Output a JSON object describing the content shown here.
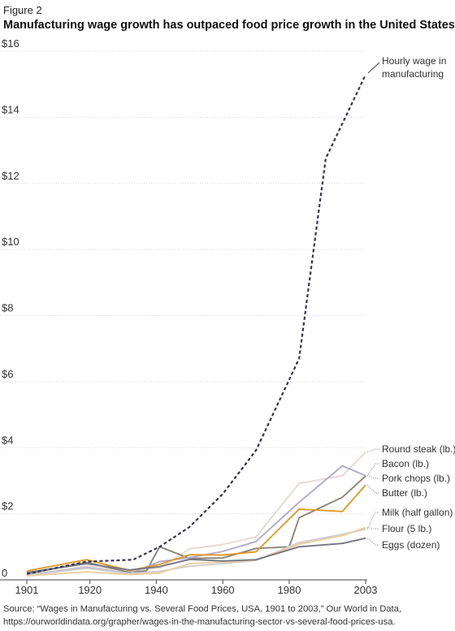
{
  "figure_label": "Figure 2",
  "source": {
    "line1": "Source: “Wages in Manufacturing vs. Several Food Prices, USA, 1901 to 2003,” Our World in Data,",
    "line2": "https://ourworldindata.org/grapher/wages-in-the-manufacturing-sector-vs-several-food-prices-usa."
  },
  "chart_data": {
    "type": "line",
    "title": "Manufacturing wage growth has outpaced food price growth in the United States",
    "xlabel": "",
    "ylabel": "",
    "xlim": [
      1901,
      2003
    ],
    "ylim": [
      0,
      16
    ],
    "x_ticks": [
      {
        "value": 1901,
        "label": "1901"
      },
      {
        "value": 1920,
        "label": "1920"
      },
      {
        "value": 1940,
        "label": "1940"
      },
      {
        "value": 1960,
        "label": "1960"
      },
      {
        "value": 1980,
        "label": "1980"
      },
      {
        "value": 2003,
        "label": "2003"
      }
    ],
    "y_ticks": [
      {
        "value": 0,
        "label": "0"
      },
      {
        "value": 2,
        "label": "$2"
      },
      {
        "value": 4,
        "label": "$4"
      },
      {
        "value": 6,
        "label": "$6"
      },
      {
        "value": 8,
        "label": "$8"
      },
      {
        "value": 10,
        "label": "$10"
      },
      {
        "value": 12,
        "label": "$12"
      },
      {
        "value": 14,
        "label": "$14"
      },
      {
        "value": 16,
        "label": "$16"
      }
    ],
    "grid": {
      "horizontal": true,
      "vertical": false
    },
    "legend": "direct labels at right end of lines",
    "series": [
      {
        "name": "Round steak (lb.)",
        "color": "#e6d9d3",
        "x": [
          1901,
          1919,
          1932,
          1941,
          1950,
          1960,
          1970,
          1983,
          1996,
          2003
        ],
        "y": [
          0.13,
          0.42,
          0.26,
          0.36,
          0.94,
          1.07,
          1.3,
          2.92,
          3.15,
          3.86
        ]
      },
      {
        "name": "Bacon (lb.)",
        "color": "#8a8578",
        "x": [
          1901,
          1919,
          1932,
          1937,
          1941,
          1950,
          1960,
          1970,
          1980,
          1983,
          1996,
          2003
        ],
        "y": [
          0.18,
          0.53,
          0.22,
          0.27,
          1.0,
          0.65,
          0.66,
          0.95,
          1.0,
          1.88,
          2.5,
          3.14
        ]
      },
      {
        "name": "Pork chops (lb.)",
        "color": "#b3aac9",
        "x": [
          1901,
          1919,
          1932,
          1941,
          1950,
          1960,
          1970,
          1983,
          1996,
          2003
        ],
        "y": [
          0.15,
          0.37,
          0.2,
          0.55,
          0.67,
          0.86,
          1.16,
          2.35,
          3.45,
          3.15
        ]
      },
      {
        "name": "Butter (lb.)",
        "color": "#e09a2a",
        "x": [
          1901,
          1919,
          1932,
          1941,
          1950,
          1960,
          1970,
          1983,
          1996,
          2003
        ],
        "y": [
          0.27,
          0.61,
          0.28,
          0.47,
          0.76,
          0.75,
          0.85,
          2.14,
          2.07,
          2.87
        ]
      },
      {
        "name": "Milk (half gallon)",
        "color": "#cfcfd0",
        "x": [
          1901,
          1919,
          1932,
          1941,
          1950,
          1960,
          1970,
          1983,
          1996,
          2003
        ],
        "y": [
          0.14,
          0.35,
          0.19,
          0.26,
          0.41,
          0.49,
          0.59,
          1.13,
          1.38,
          1.53
        ]
      },
      {
        "name": "Flour (5 lb.)",
        "color": "#ebcd9e",
        "x": [
          1901,
          1919,
          1932,
          1941,
          1950,
          1960,
          1970,
          1983,
          1996,
          2003
        ],
        "y": [
          0.12,
          0.24,
          0.16,
          0.21,
          0.49,
          0.54,
          0.6,
          1.08,
          1.34,
          1.58
        ]
      },
      {
        "name": "Eggs (dozen)",
        "color": "#767582",
        "x": [
          1901,
          1919,
          1932,
          1941,
          1950,
          1960,
          1970,
          1983,
          1996,
          2003
        ],
        "y": [
          0.22,
          0.49,
          0.3,
          0.4,
          0.62,
          0.57,
          0.61,
          1.0,
          1.1,
          1.26
        ]
      },
      {
        "name": "Hourly wage in manufacturing",
        "color": "#353551",
        "dashed": true,
        "x": [
          1901,
          1919,
          1933,
          1941,
          1950,
          1960,
          1970,
          1983,
          1991,
          2003
        ],
        "y": [
          0.18,
          0.55,
          0.61,
          1.0,
          1.6,
          2.6,
          3.92,
          6.7,
          12.75,
          15.29
        ]
      }
    ]
  }
}
